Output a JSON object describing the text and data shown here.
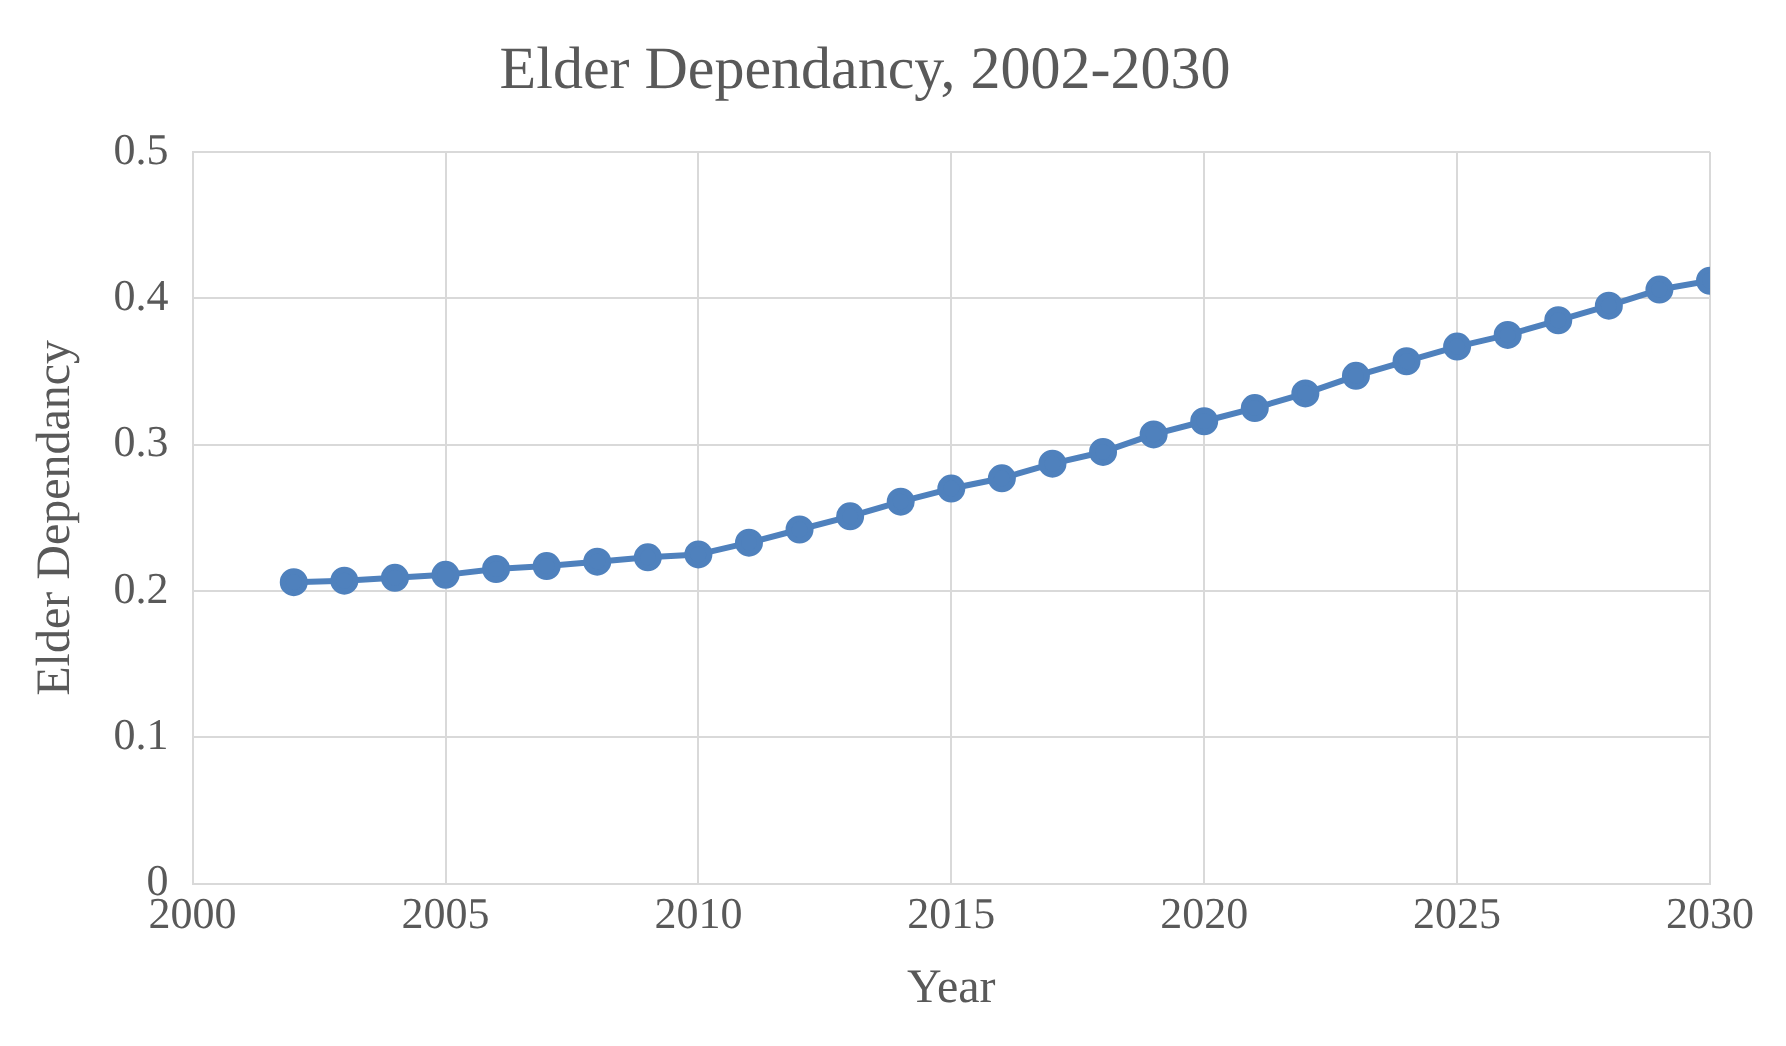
{
  "chart_data": {
    "type": "line",
    "title": "Elder Dependancy, 2002-2030",
    "xlabel": "Year",
    "ylabel": "Elder Dependancy",
    "x": [
      2002,
      2003,
      2004,
      2005,
      2006,
      2007,
      2008,
      2009,
      2010,
      2011,
      2012,
      2013,
      2014,
      2015,
      2016,
      2017,
      2018,
      2019,
      2020,
      2021,
      2022,
      2023,
      2024,
      2025,
      2026,
      2027,
      2028,
      2029,
      2030
    ],
    "series": [
      {
        "color": "#4f81bd",
        "values": [
          0.206,
          0.207,
          0.209,
          0.211,
          0.215,
          0.217,
          0.22,
          0.223,
          0.225,
          0.233,
          0.242,
          0.251,
          0.261,
          0.27,
          0.277,
          0.287,
          0.295,
          0.307,
          0.316,
          0.325,
          0.335,
          0.347,
          0.357,
          0.367,
          0.375,
          0.385,
          0.395,
          0.406,
          0.412
        ]
      }
    ],
    "xlim": [
      2000,
      2030
    ],
    "xticks": [
      2000,
      2005,
      2010,
      2015,
      2020,
      2025,
      2030
    ],
    "ylim": [
      0,
      0.5
    ],
    "yticks": [
      0,
      0.1,
      0.2,
      0.3,
      0.4,
      0.5
    ],
    "grid": true,
    "legend": false,
    "marker": "circle",
    "line_style": "solid"
  }
}
